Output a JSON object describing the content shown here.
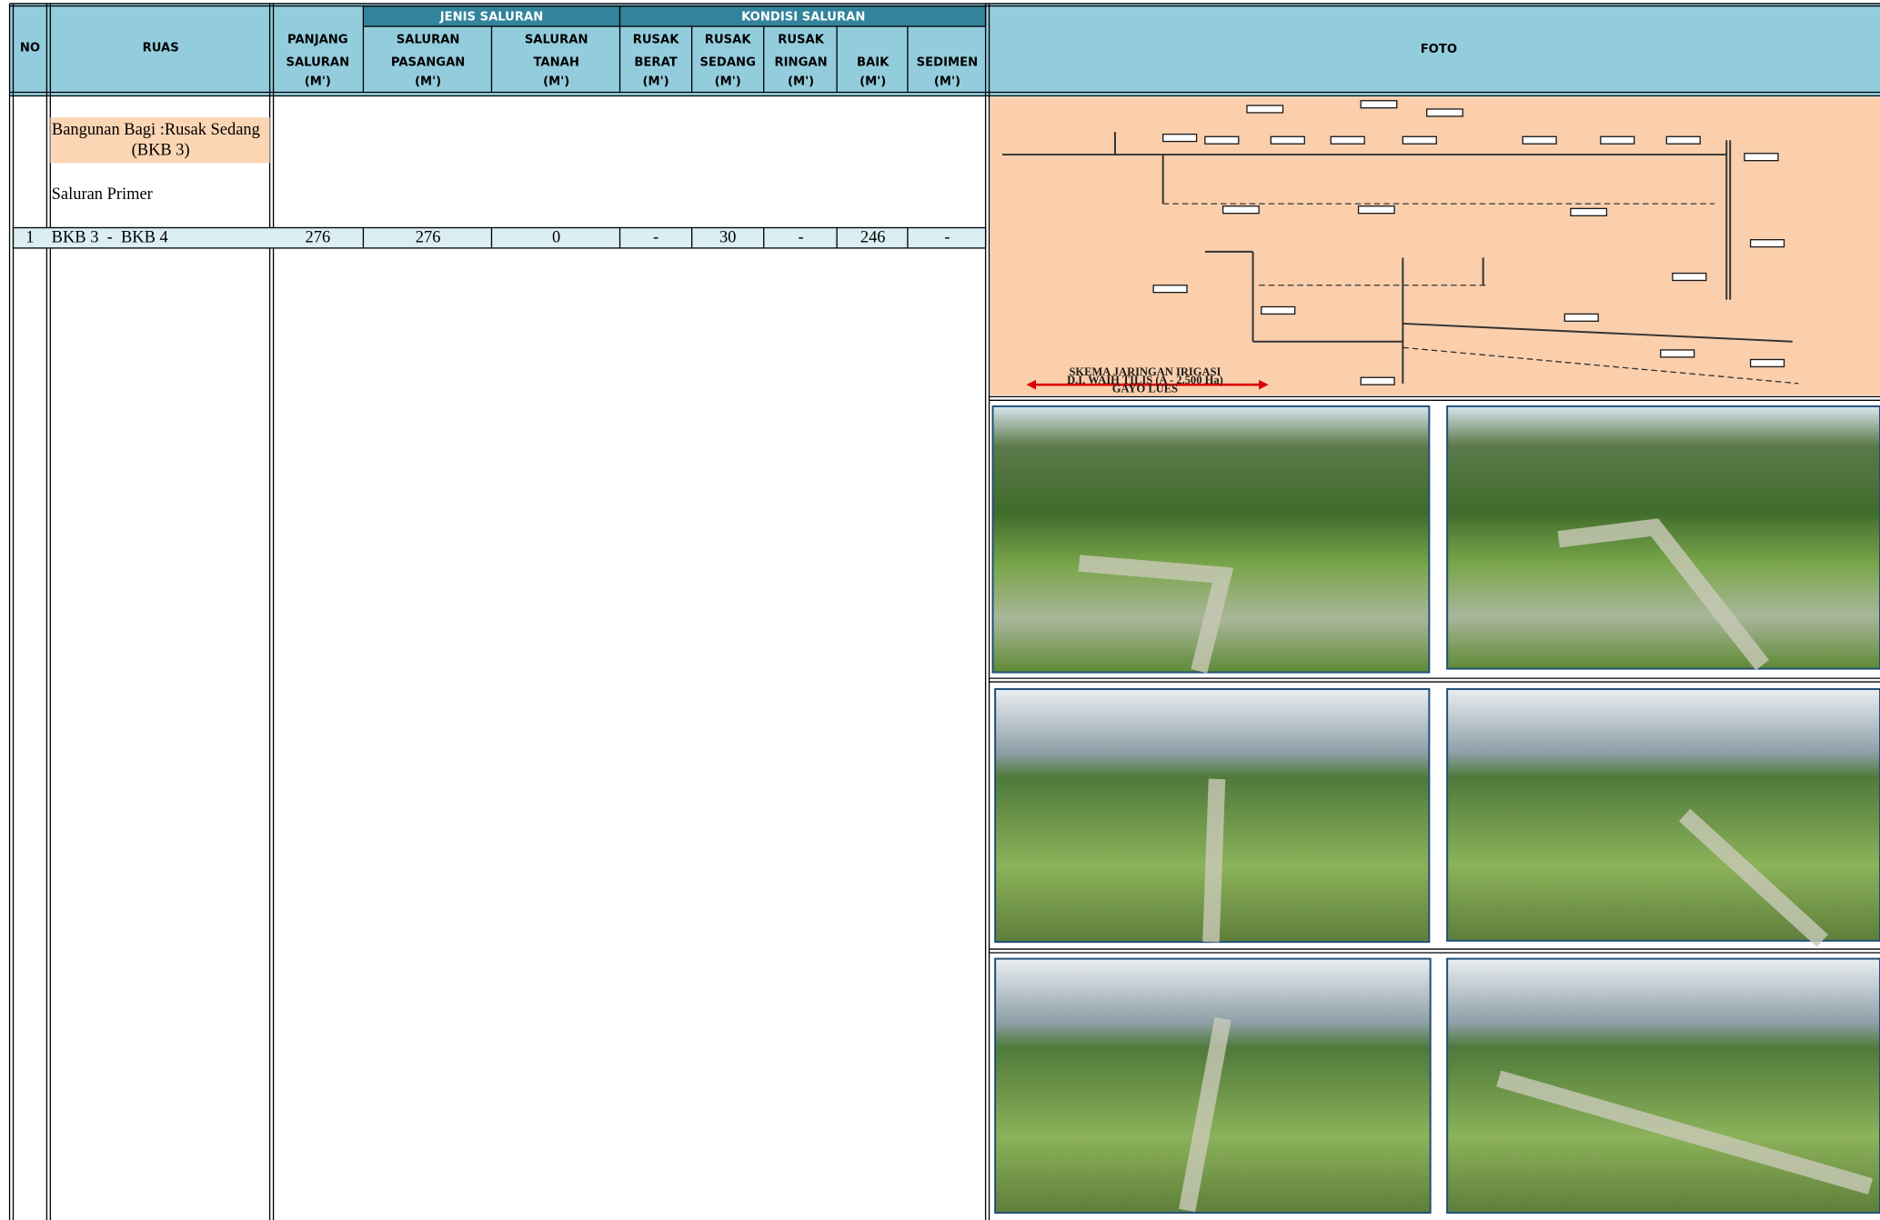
{
  "header": {
    "no": "NO",
    "ruas": "RUAS",
    "panjang": [
      "PANJANG",
      "SALURAN",
      "(M')"
    ],
    "jenis": {
      "title": "JENIS SALURAN",
      "columns": [
        [
          "SALURAN",
          "PASANGAN",
          "(M')"
        ],
        [
          "SALURAN",
          "TANAH",
          "(M')"
        ]
      ]
    },
    "kondisi": {
      "title": "KONDISI SALURAN",
      "columns": [
        [
          "RUSAK",
          "BERAT",
          "(M')"
        ],
        [
          "RUSAK",
          "SEDANG",
          "(M')"
        ],
        [
          "RUSAK",
          "RINGAN",
          "(M')"
        ],
        [
          "BAIK",
          "(M')"
        ],
        [
          "SEDIMEN",
          "(M')"
        ]
      ]
    },
    "foto": "FOTO"
  },
  "section": {
    "title": [
      "Bangunan Bagi :Rusak Sedang",
      "(BKB 3)"
    ],
    "subtitle": "Saluran Primer"
  },
  "rows": [
    [
      "1",
      "BKB 3  -  BKB 4",
      276,
      276,
      0,
      "-",
      30,
      "-",
      246,
      "-"
    ]
  ],
  "schema": {
    "lines": [
      "SKEMA JARINGAN IRIGASI",
      "D.I. WAIH TILIS (A - 2.500 Ha)",
      "GAYO LUES"
    ]
  }
}
